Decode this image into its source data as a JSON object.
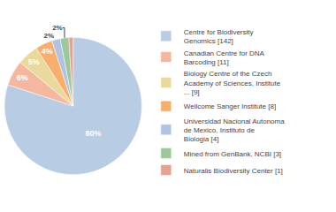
{
  "chart_data": {
    "type": "pie",
    "categories": [
      "Centre for Biodiversity\nGenomics [142]",
      "Canadian Centre for DNA\nBarcoding [11]",
      "Biology Centre of the Czech\nAcademy of Sciences, Institute\n... [9]",
      "Wellcome Sanger Institute [8]",
      "Universidad Nacional Autonoma\nde Mexico, Instituto de\nBiologia [4]",
      "Mined from GenBank, NCBI [3]",
      "Naturalis Biodiversity Center [1]"
    ],
    "values": [
      80,
      6,
      5,
      4,
      2,
      2,
      1
    ],
    "value_labels": [
      "80%",
      "6%",
      "5%",
      "4%",
      "2%",
      "2%",
      null
    ],
    "colors": [
      "#b8cce4",
      "#f4b8a0",
      "#ead99c",
      "#f8ae6c",
      "#afc4e4",
      "#9dc89c",
      "#e8a090"
    ],
    "data_labels": true,
    "legend": "right"
  }
}
